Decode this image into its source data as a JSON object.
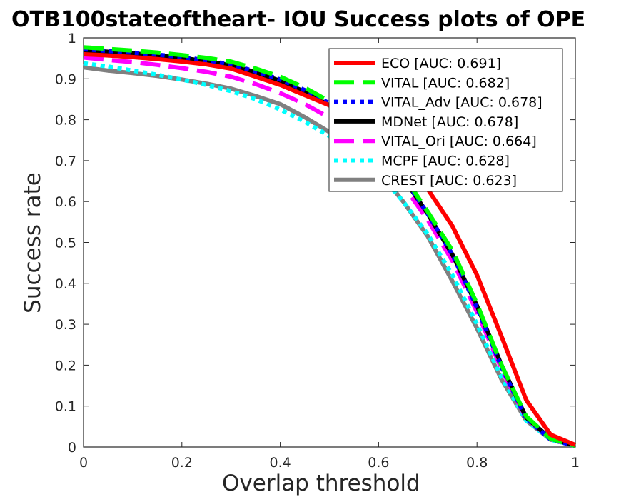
{
  "chart_data": {
    "type": "line",
    "title": "OTB100stateoftheart- IOU Success plots of OPE",
    "xlabel": "Overlap threshold",
    "ylabel": "Success rate",
    "xlim": [
      0,
      1
    ],
    "ylim": [
      0,
      1
    ],
    "xticks": [
      "0",
      "0.2",
      "0.4",
      "0.6",
      "0.8",
      "1"
    ],
    "yticks": [
      "0",
      "0.1",
      "0.2",
      "0.3",
      "0.4",
      "0.5",
      "0.6",
      "0.7",
      "0.8",
      "0.9",
      "1"
    ],
    "legend_position": "top-right",
    "grid": false,
    "x": [
      0,
      0.05,
      0.1,
      0.15,
      0.2,
      0.25,
      0.3,
      0.35,
      0.4,
      0.45,
      0.5,
      0.55,
      0.6,
      0.65,
      0.7,
      0.75,
      0.8,
      0.85,
      0.9,
      0.95,
      1
    ],
    "series": [
      {
        "name": "ECO [AUC: 0.691]",
        "color": "#ff0000",
        "style": "solid",
        "values": [
          0.96,
          0.957,
          0.953,
          0.948,
          0.942,
          0.935,
          0.925,
          0.905,
          0.885,
          0.86,
          0.835,
          0.8,
          0.76,
          0.7,
          0.63,
          0.54,
          0.42,
          0.27,
          0.115,
          0.03,
          0.005
        ]
      },
      {
        "name": "VITAL [AUC: 0.682]",
        "color": "#00ff00",
        "style": "dashed",
        "values": [
          0.977,
          0.973,
          0.969,
          0.964,
          0.958,
          0.951,
          0.942,
          0.925,
          0.905,
          0.878,
          0.845,
          0.8,
          0.745,
          0.665,
          0.575,
          0.48,
          0.35,
          0.2,
          0.075,
          0.02,
          0.003
        ]
      },
      {
        "name": "VITAL_Adv [AUC: 0.678]",
        "color": "#0000ff",
        "style": "dotted",
        "values": [
          0.972,
          0.968,
          0.964,
          0.959,
          0.953,
          0.945,
          0.935,
          0.918,
          0.898,
          0.872,
          0.84,
          0.795,
          0.74,
          0.66,
          0.57,
          0.47,
          0.34,
          0.195,
          0.07,
          0.018,
          0.003
        ]
      },
      {
        "name": "MDNet [AUC: 0.678]",
        "color": "#000000",
        "style": "solid",
        "values": [
          0.97,
          0.966,
          0.962,
          0.957,
          0.951,
          0.943,
          0.933,
          0.916,
          0.895,
          0.868,
          0.835,
          0.79,
          0.735,
          0.658,
          0.57,
          0.47,
          0.345,
          0.2,
          0.072,
          0.02,
          0.003
        ]
      },
      {
        "name": "VITAL_Ori [AUC: 0.664]",
        "color": "#ff00ff",
        "style": "dashed",
        "values": [
          0.952,
          0.946,
          0.941,
          0.934,
          0.926,
          0.917,
          0.905,
          0.887,
          0.865,
          0.838,
          0.805,
          0.762,
          0.71,
          0.64,
          0.555,
          0.455,
          0.33,
          0.19,
          0.07,
          0.02,
          0.003
        ]
      },
      {
        "name": "MCPF [AUC: 0.628]",
        "color": "#00ffff",
        "style": "dotted",
        "values": [
          0.938,
          0.93,
          0.92,
          0.91,
          0.898,
          0.885,
          0.87,
          0.85,
          0.825,
          0.795,
          0.76,
          0.72,
          0.67,
          0.6,
          0.52,
          0.42,
          0.3,
          0.17,
          0.065,
          0.018,
          0.003
        ]
      },
      {
        "name": "CREST [AUC: 0.623]",
        "color": "#808080",
        "style": "solid",
        "values": [
          0.928,
          0.92,
          0.914,
          0.907,
          0.898,
          0.888,
          0.876,
          0.858,
          0.838,
          0.806,
          0.77,
          0.73,
          0.675,
          0.6,
          0.515,
          0.405,
          0.29,
          0.165,
          0.065,
          0.018,
          0.003
        ]
      }
    ]
  }
}
